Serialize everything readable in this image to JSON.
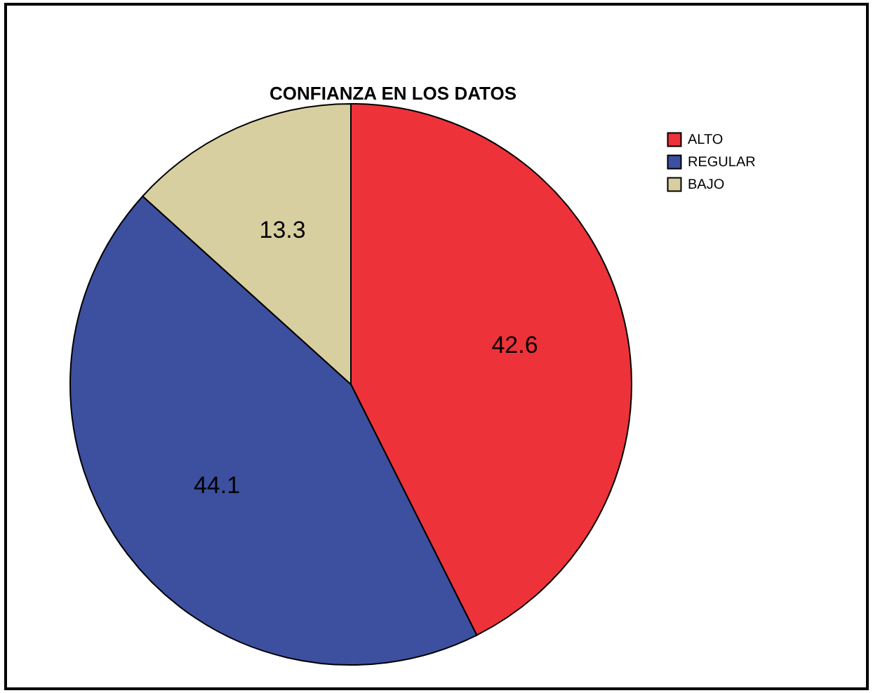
{
  "chart_data": {
    "type": "pie",
    "title": "CONFIANZA EN LOS DATOS",
    "categories": [
      "ALTO",
      "REGULAR",
      "BAJO"
    ],
    "values": [
      42.6,
      44.1,
      13.3
    ],
    "colors": [
      "#ee3239",
      "#3d4f9f",
      "#d8cfa0"
    ],
    "data_labels": true,
    "legend": "top right"
  }
}
